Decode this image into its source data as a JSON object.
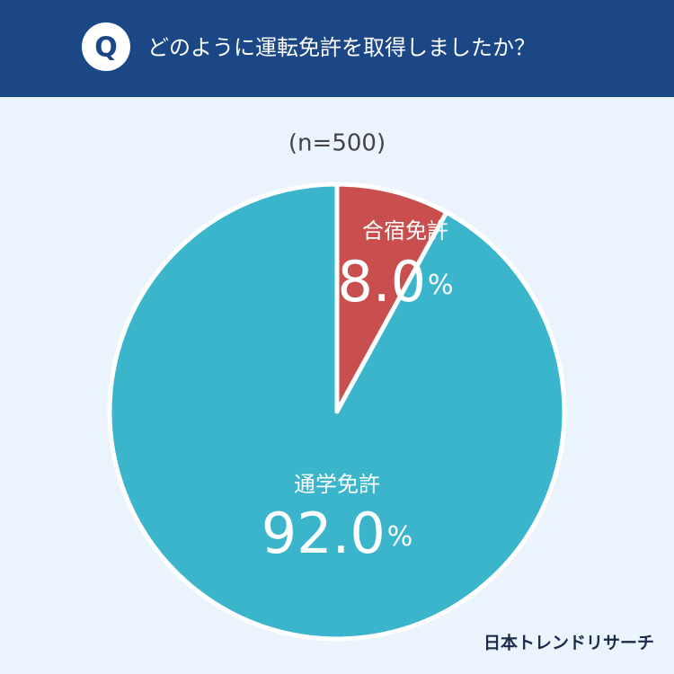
{
  "chart_data": {
    "type": "pie",
    "badge": "Q",
    "title": "どのように運転免許を取得しましたか？",
    "subtitle": "(n=500)",
    "categories": [
      "合宿免許",
      "通学免許"
    ],
    "values": [
      8,
      92
    ],
    "value_labels": [
      "8.0",
      "92.0"
    ],
    "value_suffix": "%",
    "colors": [
      "#c94f4f",
      "#3ab5cc"
    ],
    "source": "日本トレンドリサーチ"
  }
}
